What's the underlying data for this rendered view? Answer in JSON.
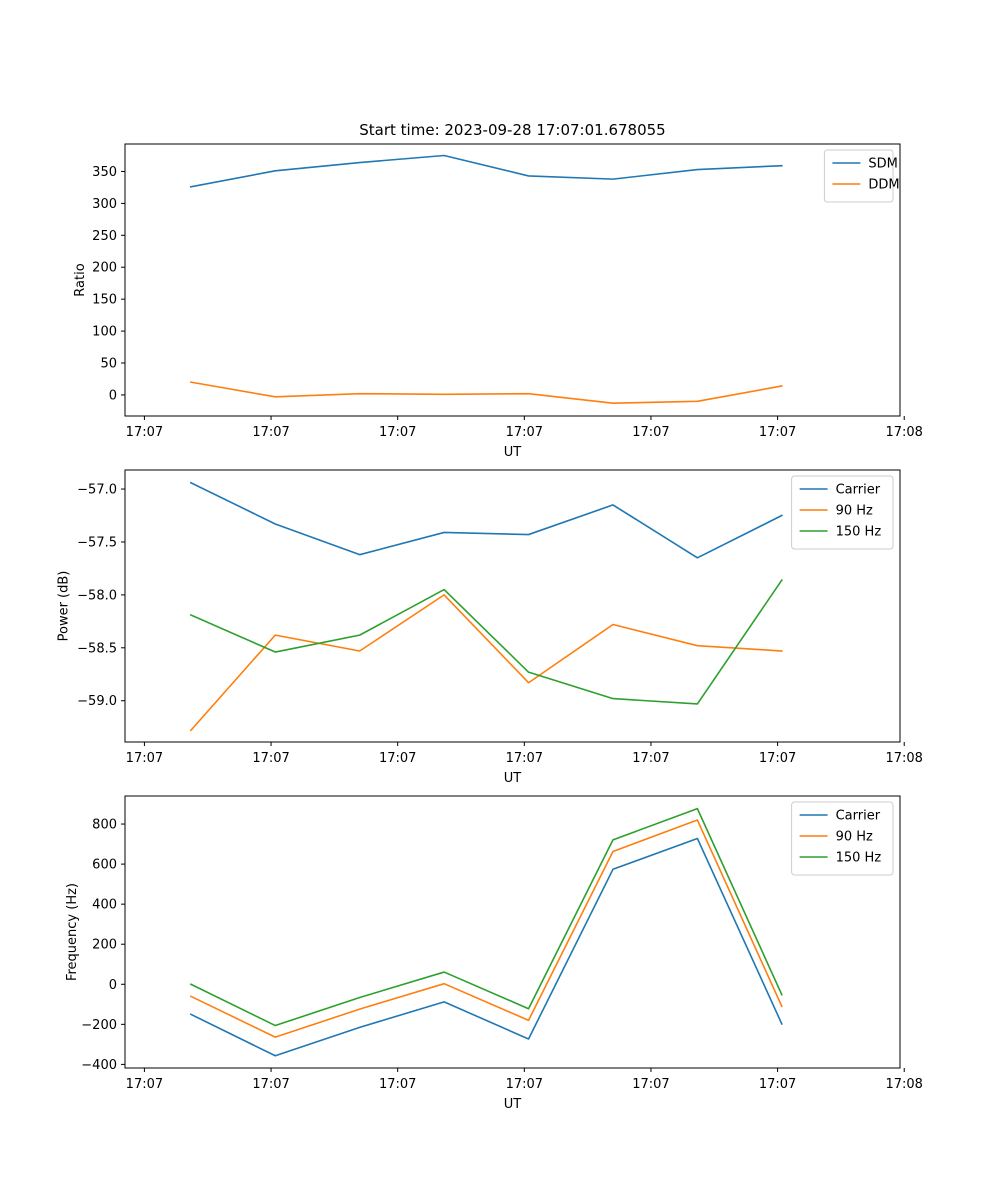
{
  "figure": {
    "title": "Start time: 2023-09-28 17:07:01.678055"
  },
  "colors": {
    "blue": "#1f77b4",
    "orange": "#ff7f0e",
    "green": "#2ca02c"
  },
  "chart_data": [
    {
      "type": "line",
      "title": "Start time: 2023-09-28 17:07:01.678055",
      "xlabel": "UT",
      "ylabel": "Ratio",
      "x": [
        1,
        2,
        3,
        4,
        5,
        6,
        7,
        8
      ],
      "xlim": [
        0.22,
        9.4
      ],
      "x_ticks": [
        0.45,
        1.95,
        3.45,
        4.95,
        6.45,
        7.95,
        9.45
      ],
      "x_tick_labels": [
        "17:07",
        "17:07",
        "17:07",
        "17:07",
        "17:07",
        "17:07",
        "17:08"
      ],
      "ylim": [
        -33,
        393
      ],
      "y_ticks": [
        0,
        50,
        100,
        150,
        200,
        250,
        300,
        350
      ],
      "y_tick_labels": [
        "0",
        "50",
        "100",
        "150",
        "200",
        "250",
        "300",
        "350"
      ],
      "legend_position": "top-right",
      "series": [
        {
          "name": "SDM",
          "color": "#1f77b4",
          "values": [
            326,
            351,
            364,
            375,
            343,
            338,
            353,
            359
          ]
        },
        {
          "name": "DDM",
          "color": "#ff7f0e",
          "values": [
            20,
            -3,
            2,
            1,
            2,
            -13,
            -10,
            14
          ]
        }
      ]
    },
    {
      "type": "line",
      "title": "",
      "xlabel": "UT",
      "ylabel": "Power (dB)",
      "x": [
        1,
        2,
        3,
        4,
        5,
        6,
        7,
        8
      ],
      "xlim": [
        0.22,
        9.4
      ],
      "x_ticks": [
        0.45,
        1.95,
        3.45,
        4.95,
        6.45,
        7.95,
        9.45
      ],
      "x_tick_labels": [
        "17:07",
        "17:07",
        "17:07",
        "17:07",
        "17:07",
        "17:07",
        "17:08"
      ],
      "ylim": [
        -59.39,
        -56.82
      ],
      "y_ticks": [
        -59.0,
        -58.5,
        -58.0,
        -57.5,
        -57.0
      ],
      "y_tick_labels": [
        "−59.0",
        "−58.5",
        "−58.0",
        "−57.5",
        "−57.0"
      ],
      "legend_position": "top-right",
      "series": [
        {
          "name": "Carrier",
          "color": "#1f77b4",
          "values": [
            -56.94,
            -57.33,
            -57.62,
            -57.41,
            -57.43,
            -57.15,
            -57.65,
            -57.25
          ]
        },
        {
          "name": "90 Hz",
          "color": "#ff7f0e",
          "values": [
            -59.28,
            -58.38,
            -58.53,
            -58.0,
            -58.83,
            -58.28,
            -58.48,
            -58.53
          ]
        },
        {
          "name": "150 Hz",
          "color": "#2ca02c",
          "values": [
            -58.19,
            -58.54,
            -58.38,
            -57.95,
            -58.73,
            -58.98,
            -59.03,
            -57.86
          ]
        }
      ]
    },
    {
      "type": "line",
      "title": "",
      "xlabel": "UT",
      "ylabel": "Frequency (Hz)",
      "x": [
        1,
        2,
        3,
        4,
        5,
        6,
        7,
        8
      ],
      "xlim": [
        0.22,
        9.4
      ],
      "x_ticks": [
        0.45,
        1.95,
        3.45,
        4.95,
        6.45,
        7.95,
        9.45
      ],
      "x_tick_labels": [
        "17:07",
        "17:07",
        "17:07",
        "17:07",
        "17:07",
        "17:07",
        "17:08"
      ],
      "ylim": [
        -418,
        940
      ],
      "y_ticks": [
        -400,
        -200,
        0,
        200,
        400,
        600,
        800
      ],
      "y_tick_labels": [
        "−400",
        "−200",
        "0",
        "200",
        "400",
        "600",
        "800"
      ],
      "legend_position": "top-right",
      "series": [
        {
          "name": "Carrier",
          "color": "#1f77b4",
          "values": [
            -150,
            -357,
            -215,
            -88,
            -273,
            574,
            728,
            -198
          ]
        },
        {
          "name": "90 Hz",
          "color": "#ff7f0e",
          "values": [
            -60,
            -264,
            -124,
            3,
            -180,
            663,
            820,
            -110
          ]
        },
        {
          "name": "150 Hz",
          "color": "#2ca02c",
          "values": [
            0,
            -206,
            -66,
            61,
            -122,
            721,
            877,
            -52
          ]
        }
      ]
    }
  ]
}
